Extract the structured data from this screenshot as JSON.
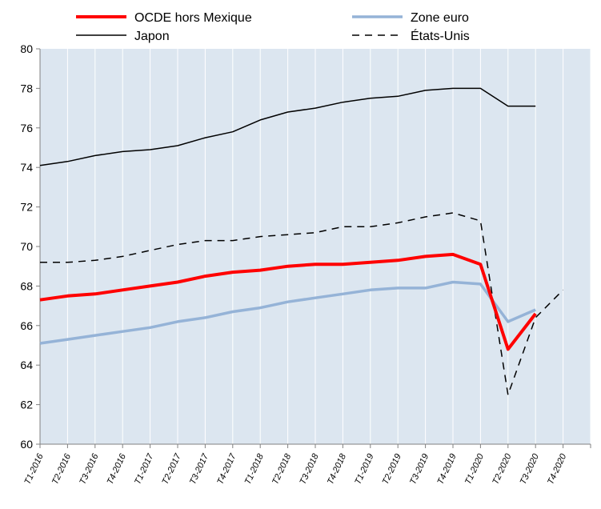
{
  "chart_data": {
    "type": "line",
    "categories": [
      "T1-2016",
      "T2-2016",
      "T3-2016",
      "T4-2016",
      "T1-2017",
      "T2-2017",
      "T3-2017",
      "T4-2017",
      "T1-2018",
      "T2-2018",
      "T3-2018",
      "T4-2018",
      "T1-2019",
      "T2-2019",
      "T3-2019",
      "T4-2019",
      "T1-2020",
      "T2-2020",
      "T3-2020",
      "T4-2020"
    ],
    "ylim": [
      60,
      80
    ],
    "yticks": [
      60,
      62,
      64,
      66,
      68,
      70,
      72,
      74,
      76,
      78,
      80
    ],
    "grid": "vertical",
    "series": [
      {
        "name": "OCDE hors Mexique",
        "color": "#ff0000",
        "dash": "solid",
        "width": 4,
        "values": [
          67.3,
          67.5,
          67.6,
          67.8,
          68.0,
          68.2,
          68.5,
          68.7,
          68.8,
          69.0,
          69.1,
          69.1,
          69.2,
          69.3,
          69.5,
          69.6,
          69.1,
          64.8,
          66.6,
          null
        ]
      },
      {
        "name": "Zone euro",
        "color": "#95b3d7",
        "dash": "solid",
        "width": 3.5,
        "values": [
          65.1,
          65.3,
          65.5,
          65.7,
          65.9,
          66.2,
          66.4,
          66.7,
          66.9,
          67.2,
          67.4,
          67.6,
          67.8,
          67.9,
          67.9,
          68.2,
          68.1,
          66.2,
          66.8,
          null
        ]
      },
      {
        "name": "Japon",
        "color": "#000000",
        "dash": "solid",
        "width": 1.5,
        "values": [
          74.1,
          74.3,
          74.6,
          74.8,
          74.9,
          75.1,
          75.5,
          75.8,
          76.4,
          76.8,
          77.0,
          77.3,
          77.5,
          77.6,
          77.9,
          78.0,
          78.0,
          77.1,
          77.1,
          null
        ]
      },
      {
        "name": "États-Unis",
        "color": "#000000",
        "dash": "dashed",
        "width": 1.5,
        "values": [
          69.2,
          69.2,
          69.3,
          69.5,
          69.8,
          70.1,
          70.3,
          70.3,
          70.5,
          70.6,
          70.7,
          71.0,
          71.0,
          71.2,
          71.5,
          71.7,
          71.3,
          62.5,
          66.4,
          67.8
        ]
      }
    ],
    "legend": {
      "placement": "top",
      "items": [
        "OCDE hors Mexique",
        "Zone euro",
        "Japon",
        "États-Unis"
      ]
    },
    "colors": {
      "plot_background": "#dce6f0",
      "gridline": "#ffffff",
      "axis": "#808080"
    }
  }
}
